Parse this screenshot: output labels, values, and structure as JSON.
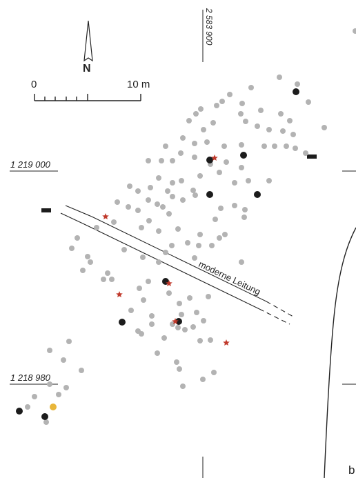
{
  "labels": {
    "north": "N",
    "scale_start": "0",
    "scale_end": "10 m",
    "northing_top": "1 219 000",
    "northing_bottom": "1 218 980",
    "easting": "2 583 900",
    "pipe": "moderne Leitung",
    "corner": "b"
  },
  "colors": {
    "background": "#ffffff",
    "ink": "#222222",
    "grey_post": "#b3b3b3",
    "black_post": "#1c1c1c",
    "star_marker": "#c0392b",
    "yellow_post": "#e8b63a"
  },
  "legend_symbols": [
    "grey-post-dot",
    "black-post-dot",
    "red-star-marker",
    "yellow-post-dot"
  ]
}
